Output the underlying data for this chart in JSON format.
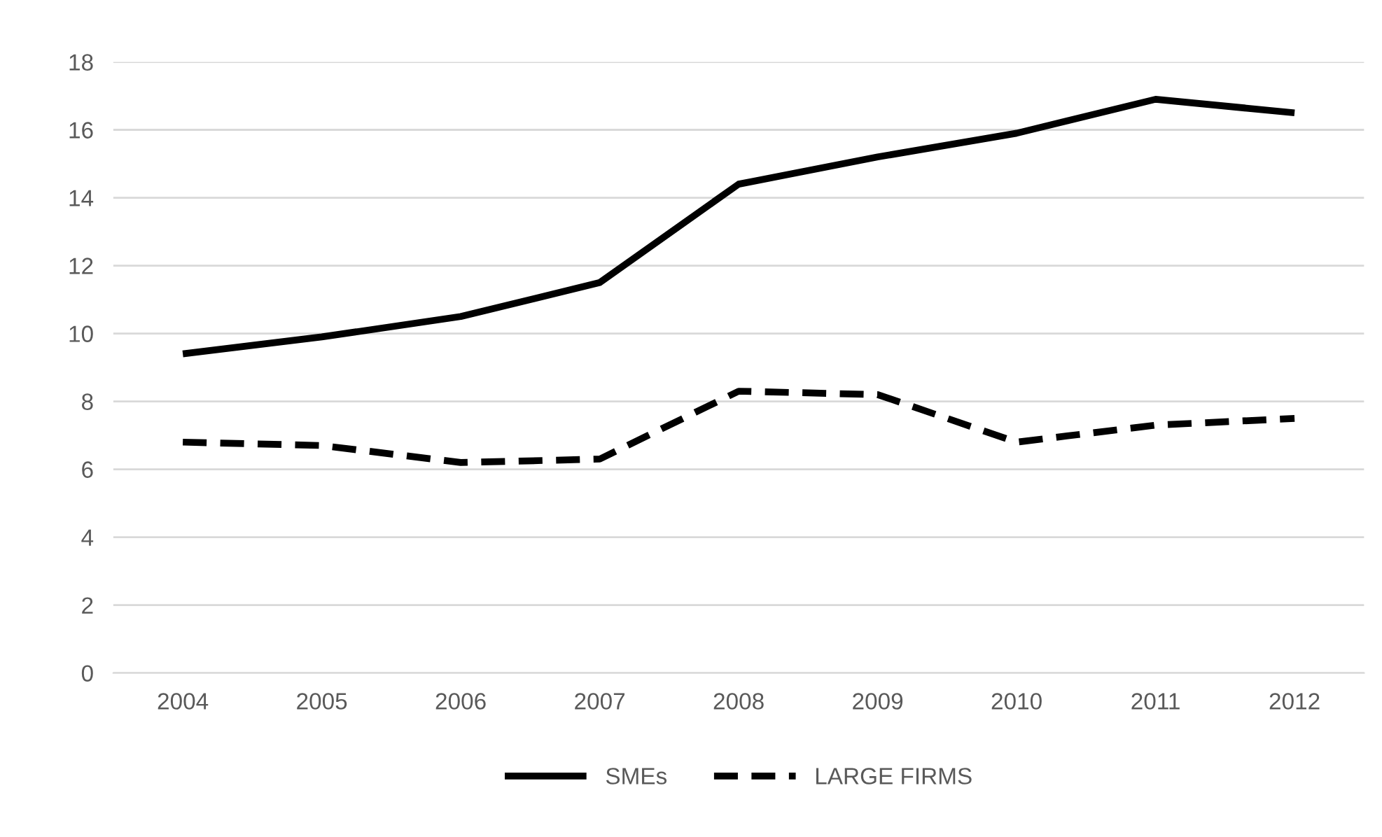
{
  "chart_data": {
    "type": "line",
    "categories": [
      "2004",
      "2005",
      "2006",
      "2007",
      "2008",
      "2009",
      "2010",
      "2011",
      "2012"
    ],
    "series": [
      {
        "name": "SMEs",
        "color": "#000000",
        "line_style": "solid",
        "values": [
          9.4,
          9.9,
          10.5,
          11.5,
          14.4,
          15.2,
          15.9,
          16.9,
          16.5
        ]
      },
      {
        "name": "LARGE FIRMS",
        "color": "#000000",
        "line_style": "dashed",
        "values": [
          6.8,
          6.7,
          6.2,
          6.3,
          8.3,
          8.2,
          6.8,
          7.3,
          7.5
        ]
      }
    ],
    "ylim": [
      0,
      18
    ],
    "yticks": [
      0,
      2,
      4,
      6,
      8,
      10,
      12,
      14,
      16,
      18
    ],
    "grid": "y",
    "legend": "bottom",
    "marker": "none"
  }
}
